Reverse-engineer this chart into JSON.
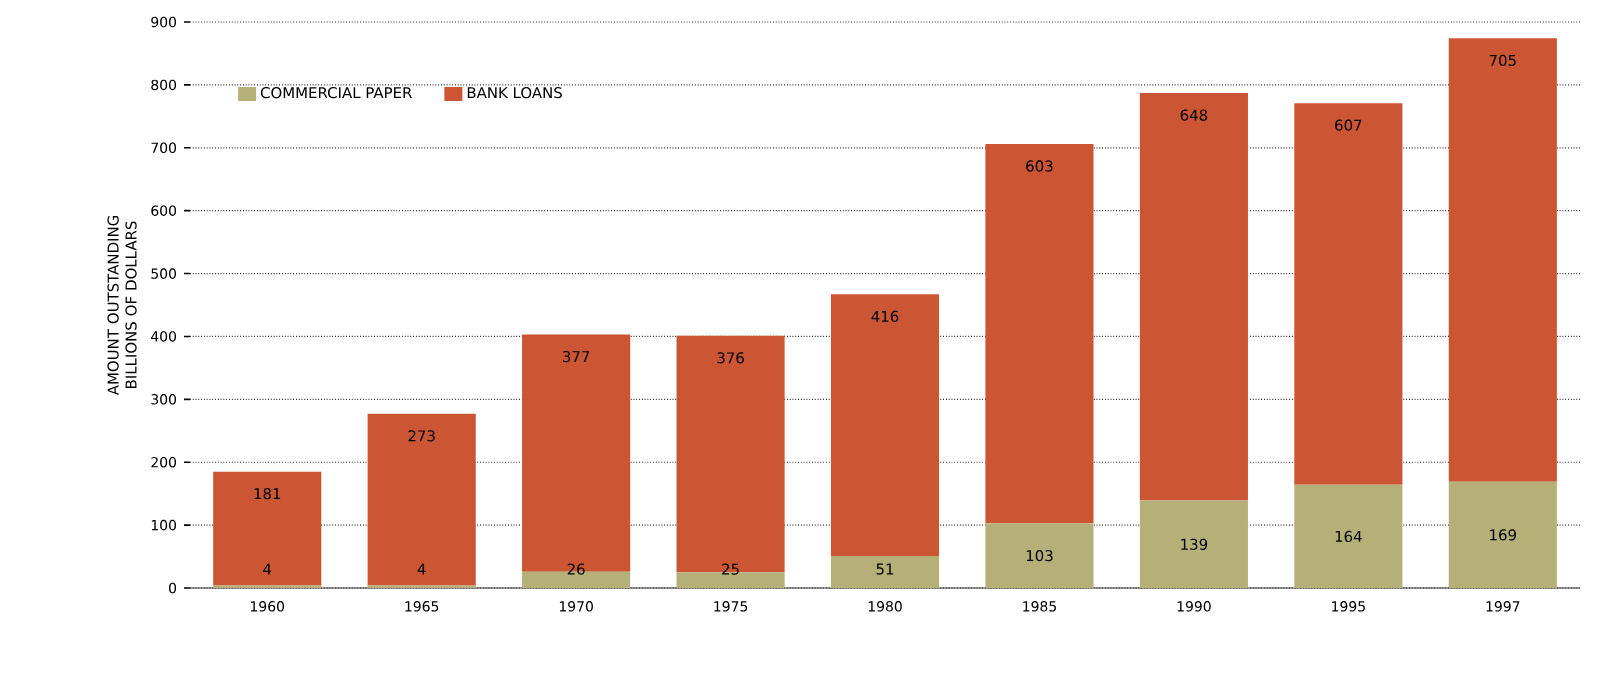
{
  "chart_data": {
    "type": "bar",
    "stacked": true,
    "ylabel": "AMOUNT OUTSTANDING BILLIONS OF DOLLARS",
    "categories": [
      "1960",
      "1965",
      "1970",
      "1975",
      "1980",
      "1985",
      "1990",
      "1995",
      "1997"
    ],
    "series": [
      {
        "name": "COMMERCIAL PAPER",
        "color": "#b5b077",
        "values": [
          4,
          4,
          26,
          25,
          51,
          103,
          139,
          164,
          169
        ]
      },
      {
        "name": "BANK LOANS",
        "color": "#cc5533",
        "values": [
          181,
          273,
          377,
          376,
          416,
          603,
          648,
          607,
          705
        ]
      }
    ],
    "ylim": [
      0,
      900
    ],
    "yticks": [
      0,
      100,
      200,
      300,
      400,
      500,
      600,
      700,
      800,
      900
    ],
    "grid": "y",
    "legend": "top left",
    "data_labels": true
  }
}
